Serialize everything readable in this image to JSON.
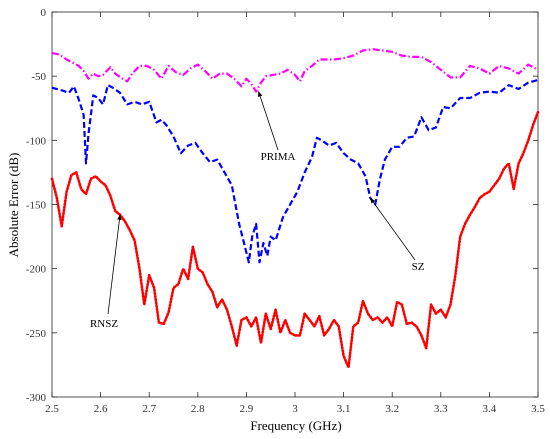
{
  "chart_data": {
    "type": "line",
    "xlabel": "Frequency (GHz)",
    "ylabel": "Absolute Error (dB)",
    "xlim": [
      2.5,
      3.5
    ],
    "ylim": [
      -300,
      0
    ],
    "xticks": [
      "2.5",
      "2.6",
      "2.7",
      "2.8",
      "2.9",
      "3",
      "3.1",
      "3.2",
      "3.3",
      "3.4",
      "3.5"
    ],
    "yticks": [
      "0",
      "-50",
      "-100",
      "-150",
      "-200",
      "-250",
      "-300"
    ],
    "grid": false,
    "series": [
      {
        "name": "PRIMA",
        "color": "#ff00ff",
        "style": "dashdot",
        "x": [
          2.5,
          2.515,
          2.53,
          2.545,
          2.555,
          2.565,
          2.575,
          2.585,
          2.595,
          2.605,
          2.62,
          2.63,
          2.645,
          2.655,
          2.665,
          2.68,
          2.695,
          2.71,
          2.725,
          2.74,
          2.755,
          2.77,
          2.785,
          2.8,
          2.815,
          2.83,
          2.845,
          2.86,
          2.875,
          2.89,
          2.9,
          2.91,
          2.92,
          2.93,
          2.94,
          2.955,
          2.97,
          2.985,
          3.0,
          3.01,
          3.02,
          3.035,
          3.05,
          3.065,
          3.08,
          3.1,
          3.12,
          3.14,
          3.16,
          3.18,
          3.2,
          3.22,
          3.24,
          3.26,
          3.28,
          3.3,
          3.32,
          3.34,
          3.36,
          3.38,
          3.4,
          3.42,
          3.44,
          3.46,
          3.48,
          3.5
        ],
        "y": [
          -32,
          -33,
          -37,
          -40,
          -42,
          -46,
          -52,
          -48,
          -50,
          -49,
          -43,
          -48,
          -52,
          -54,
          -48,
          -42,
          -42,
          -45,
          -52,
          -42,
          -47,
          -49,
          -44,
          -41,
          -46,
          -52,
          -48,
          -48,
          -52,
          -58,
          -52,
          -56,
          -62,
          -55,
          -50,
          -49,
          -48,
          -45,
          -49,
          -54,
          -46,
          -42,
          -37,
          -37,
          -37,
          -36,
          -34,
          -30,
          -29,
          -30,
          -31,
          -34,
          -35,
          -35,
          -39,
          -45,
          -51,
          -51,
          -42,
          -44,
          -48,
          -42,
          -44,
          -48,
          -41,
          -45
        ]
      },
      {
        "name": "SZ",
        "color": "#0000ff",
        "style": "dashed",
        "x": [
          2.5,
          2.52,
          2.535,
          2.545,
          2.555,
          2.565,
          2.57,
          2.575,
          2.585,
          2.595,
          2.605,
          2.615,
          2.625,
          2.64,
          2.655,
          2.67,
          2.685,
          2.7,
          2.715,
          2.725,
          2.735,
          2.75,
          2.765,
          2.78,
          2.795,
          2.81,
          2.825,
          2.84,
          2.855,
          2.87,
          2.885,
          2.895,
          2.905,
          2.912,
          2.92,
          2.927,
          2.935,
          2.943,
          2.95,
          2.96,
          2.975,
          2.99,
          3.005,
          3.02,
          3.035,
          3.045,
          3.055,
          3.07,
          3.085,
          3.1,
          3.115,
          3.13,
          3.145,
          3.155,
          3.165,
          3.175,
          3.185,
          3.2,
          3.215,
          3.23,
          3.245,
          3.26,
          3.275,
          3.29,
          3.305,
          3.32,
          3.34,
          3.36,
          3.38,
          3.4,
          3.42,
          3.44,
          3.46,
          3.48,
          3.5
        ],
        "y": [
          -59,
          -61,
          -63,
          -58,
          -68,
          -80,
          -118,
          -95,
          -65,
          -67,
          -72,
          -57,
          -59,
          -63,
          -72,
          -70,
          -72,
          -70,
          -86,
          -84,
          -88,
          -97,
          -110,
          -104,
          -102,
          -110,
          -117,
          -115,
          -125,
          -135,
          -165,
          -180,
          -195,
          -175,
          -165,
          -195,
          -180,
          -190,
          -175,
          -178,
          -160,
          -150,
          -140,
          -125,
          -113,
          -98,
          -100,
          -104,
          -102,
          -110,
          -115,
          -118,
          -128,
          -145,
          -150,
          -130,
          -115,
          -105,
          -105,
          -98,
          -97,
          -82,
          -92,
          -90,
          -74,
          -75,
          -67,
          -67,
          -63,
          -62,
          -63,
          -57,
          -60,
          -55,
          -53
        ]
      },
      {
        "name": "RNSZ",
        "color": "#ff0000",
        "style": "dotted",
        "x": [
          2.5,
          2.51,
          2.52,
          2.53,
          2.54,
          2.55,
          2.56,
          2.57,
          2.58,
          2.59,
          2.6,
          2.61,
          2.62,
          2.63,
          2.64,
          2.65,
          2.66,
          2.67,
          2.68,
          2.69,
          2.7,
          2.71,
          2.72,
          2.73,
          2.74,
          2.75,
          2.76,
          2.77,
          2.78,
          2.79,
          2.8,
          2.81,
          2.82,
          2.83,
          2.84,
          2.85,
          2.86,
          2.87,
          2.88,
          2.89,
          2.9,
          2.91,
          2.92,
          2.93,
          2.94,
          2.95,
          2.96,
          2.97,
          2.98,
          2.99,
          3.0,
          3.01,
          3.02,
          3.03,
          3.04,
          3.05,
          3.06,
          3.07,
          3.08,
          3.09,
          3.1,
          3.11,
          3.12,
          3.13,
          3.14,
          3.15,
          3.16,
          3.17,
          3.18,
          3.19,
          3.2,
          3.21,
          3.22,
          3.23,
          3.24,
          3.25,
          3.26,
          3.27,
          3.28,
          3.29,
          3.3,
          3.31,
          3.32,
          3.33,
          3.34,
          3.35,
          3.36,
          3.37,
          3.38,
          3.39,
          3.4,
          3.41,
          3.42,
          3.43,
          3.44,
          3.45,
          3.46,
          3.47,
          3.48,
          3.49,
          3.5
        ],
        "y": [
          -130,
          -145,
          -167,
          -140,
          -127,
          -125,
          -138,
          -142,
          -130,
          -128,
          -132,
          -135,
          -143,
          -155,
          -158,
          -163,
          -170,
          -178,
          -200,
          -228,
          -205,
          -215,
          -242,
          -243,
          -234,
          -215,
          -212,
          -200,
          -208,
          -183,
          -200,
          -203,
          -212,
          -218,
          -230,
          -224,
          -232,
          -245,
          -260,
          -240,
          -238,
          -245,
          -238,
          -258,
          -235,
          -247,
          -232,
          -250,
          -240,
          -250,
          -252,
          -252,
          -235,
          -240,
          -245,
          -237,
          -252,
          -247,
          -240,
          -245,
          -268,
          -277,
          -245,
          -242,
          -225,
          -235,
          -240,
          -238,
          -242,
          -238,
          -245,
          -226,
          -228,
          -243,
          -242,
          -245,
          -252,
          -262,
          -228,
          -235,
          -232,
          -238,
          -228,
          -205,
          -175,
          -165,
          -158,
          -152,
          -145,
          -142,
          -140,
          -135,
          -130,
          -122,
          -118,
          -138,
          -118,
          -110,
          -100,
          -88,
          -78
        ]
      }
    ],
    "annotations": [
      {
        "text": "PRIMA",
        "target": [
          2.925,
          -62
        ]
      },
      {
        "text": "SZ",
        "target": [
          3.155,
          -145
        ]
      },
      {
        "text": "RNSZ",
        "target": [
          2.64,
          -158
        ]
      }
    ]
  }
}
